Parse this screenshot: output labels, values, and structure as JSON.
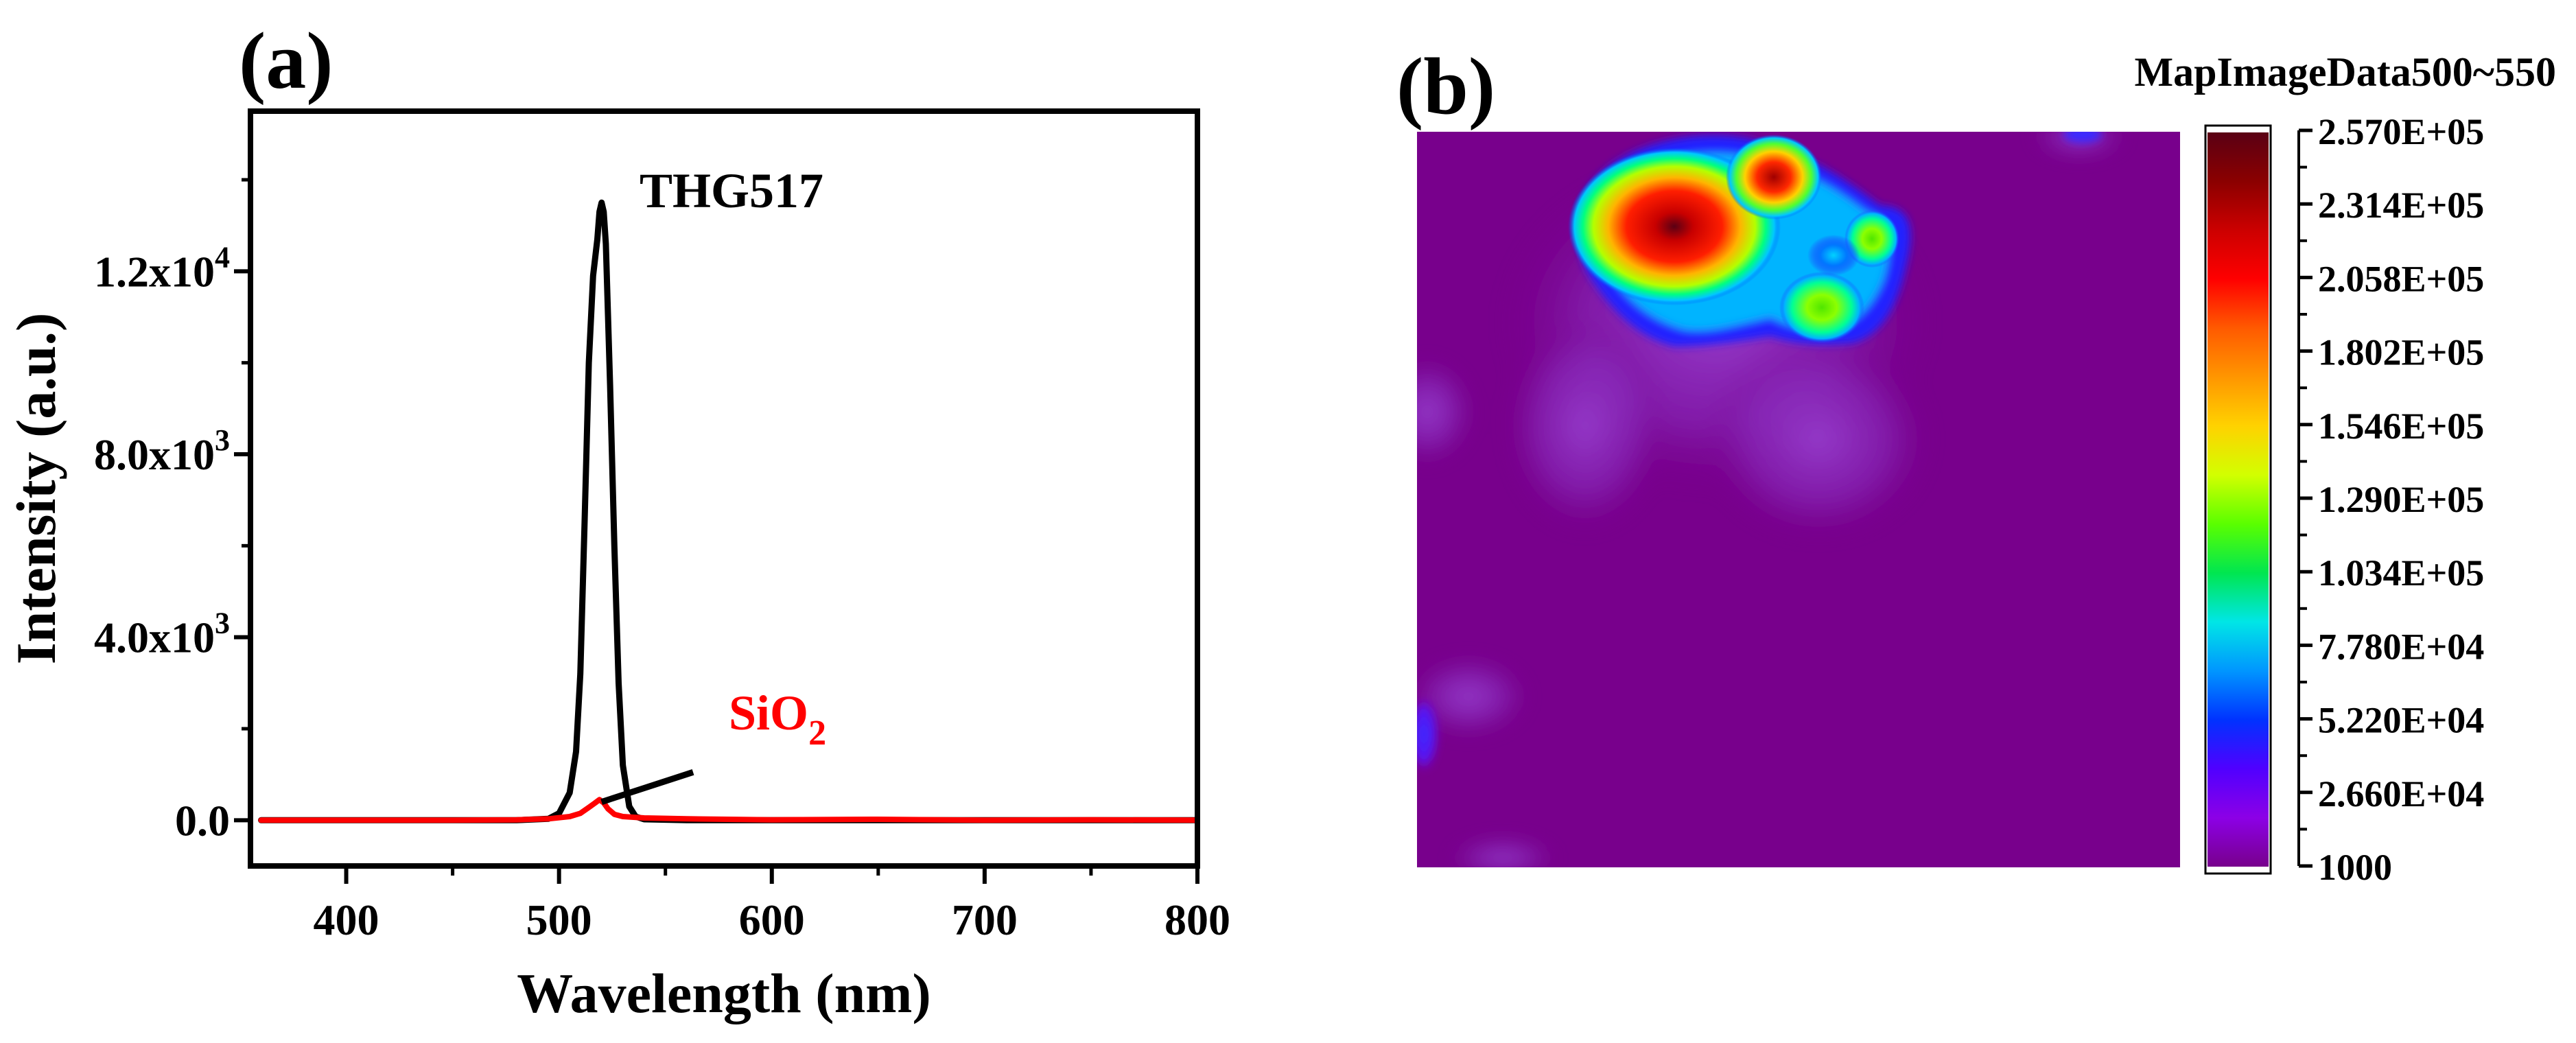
{
  "chart_data": [
    {
      "type": "line",
      "panel_label": "(a)",
      "title": "",
      "xlabel": "Wavelength (nm)",
      "ylabel": "Intensity (a.u.)",
      "xlim": [
        355,
        800
      ],
      "ylim": [
        -1000,
        15500
      ],
      "x_ticks": [
        400,
        500,
        600,
        700,
        800
      ],
      "x_tick_labels": [
        "400",
        "500",
        "600",
        "700",
        "800"
      ],
      "y_ticks": [
        0,
        4000,
        8000,
        12000
      ],
      "y_tick_labels": [
        {
          "base": "0.0",
          "exp": ""
        },
        {
          "base": "4.0x10",
          "exp": "3"
        },
        {
          "base": "8.0x10",
          "exp": "3"
        },
        {
          "base": "1.2x10",
          "exp": "4"
        }
      ],
      "series": [
        {
          "name": "THG517",
          "color": "#000000",
          "x": [
            360,
            480,
            495,
            500,
            505,
            508,
            510,
            512,
            514,
            516,
            518,
            519,
            520,
            521,
            522,
            524,
            526,
            528,
            530,
            533,
            536,
            540,
            560,
            600,
            700,
            800
          ],
          "y": [
            0,
            0,
            30,
            150,
            600,
            1500,
            3200,
            6500,
            10000,
            11900,
            12700,
            13300,
            13500,
            13300,
            12600,
            9500,
            6000,
            3000,
            1200,
            300,
            80,
            20,
            0,
            0,
            0,
            0
          ]
        },
        {
          "name": "SiO2",
          "color": "#ff0000",
          "x": [
            360,
            400,
            450,
            480,
            495,
            505,
            510,
            514,
            517,
            519,
            521,
            523,
            526,
            530,
            540,
            560,
            600,
            650,
            700,
            750,
            800
          ],
          "y": [
            0,
            0,
            0,
            10,
            30,
            80,
            150,
            280,
            380,
            450,
            380,
            250,
            130,
            80,
            50,
            30,
            10,
            20,
            0,
            10,
            0
          ]
        }
      ],
      "annotations": [
        {
          "text": "THG517",
          "color": "#000000",
          "at": [
            521,
            13500
          ]
        },
        {
          "text_base": "SiO",
          "text_sub": "2",
          "color": "#ff0000",
          "arrow_from": [
            563,
            1050
          ],
          "arrow_to": [
            520,
            400
          ]
        }
      ]
    },
    {
      "type": "heatmap",
      "panel_label": "(b)",
      "colorbar_title": "MapImageData500~550",
      "colorbar_ticks": [
        "2.570E+05",
        "2.314E+05",
        "2.058E+05",
        "1.802E+05",
        "1.546E+05",
        "1.290E+05",
        "1.034E+05",
        "7.780E+04",
        "5.220E+04",
        "2.660E+04",
        "1000"
      ],
      "colorbar_colors": [
        "#5a0014",
        "#8b0000",
        "#cc0000",
        "#ff0000",
        "#ff5a00",
        "#ff9600",
        "#ffd200",
        "#d2ff00",
        "#5aff00",
        "#00e650",
        "#00e6e6",
        "#0096ff",
        "#0032ff",
        "#5000ff",
        "#8c00e6",
        "#78008c"
      ],
      "background_value": 1000,
      "hotspots": [
        {
          "label": "cluster-main",
          "value": 257000
        },
        {
          "label": "cluster-right",
          "value": 175000
        },
        {
          "label": "cluster-lower",
          "value": 95000
        },
        {
          "label": "cluster-small",
          "value": 85000
        },
        {
          "label": "edge-left",
          "value": 40000
        }
      ]
    }
  ]
}
